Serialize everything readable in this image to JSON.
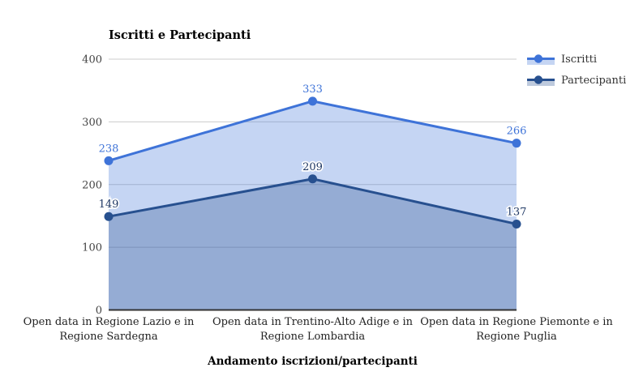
{
  "chart_data": {
    "type": "area",
    "title": "Iscritti e Partecipanti",
    "xlabel": "Andamento iscrizioni/partecipanti",
    "categories": [
      "Open data in Regione Lazio e in Regione Sardegna",
      "Open data in Trentino-Alto Adige e in Regione Lombardia",
      "Open data in Regione Piemonte e in Regione Puglia"
    ],
    "series": [
      {
        "name": "Iscritti",
        "values": [
          238,
          333,
          266
        ],
        "color": "#3e73d8",
        "fill_opacity": 0.3,
        "label_color": "#3e73d8",
        "label_halo": false
      },
      {
        "name": "Partecipanti",
        "values": [
          149,
          209,
          137
        ],
        "color": "#27508f",
        "fill_opacity": 0.3,
        "label_color": "#1f3864",
        "label_halo": true
      }
    ],
    "ylim": [
      0,
      400
    ],
    "yticks": [
      0,
      100,
      200,
      300,
      400
    ],
    "grid": true,
    "legend_position": "right",
    "colors": {
      "gridline": "#cccccc",
      "baseline": "#333333",
      "tick_text": "#444444",
      "category_text": "#222222"
    }
  }
}
